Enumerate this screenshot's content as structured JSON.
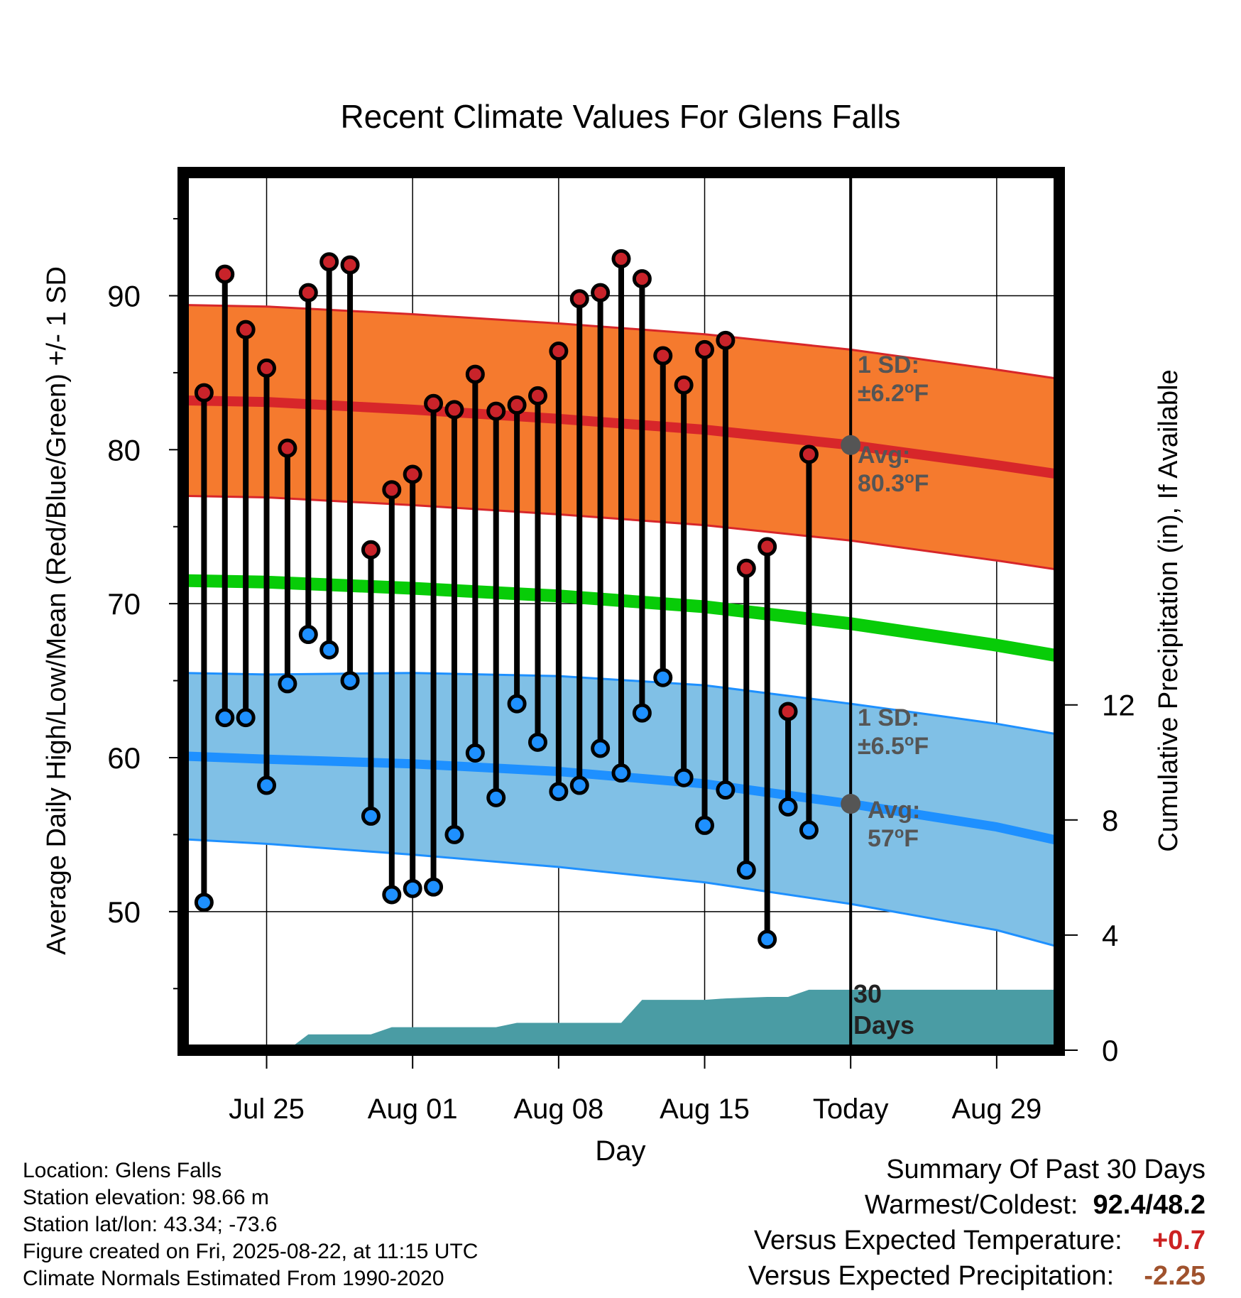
{
  "chart_data": {
    "type": "line",
    "title": "Recent Climate Values For Glens Falls",
    "xlabel": "Day",
    "ylabel": "Average Daily High/Low/Mean (Red/Blue/Green) +/- 1 SD",
    "y2label": "Cumulative Precipitation (in), If Available",
    "x_tick_labels": [
      "Jul 25",
      "Aug 01",
      "Aug 08",
      "Aug 15",
      "Today",
      "Aug 29"
    ],
    "x_tick_dates": [
      "2025-07-25",
      "2025-08-01",
      "2025-08-08",
      "2025-08-15",
      "2025-08-22",
      "2025-08-29"
    ],
    "xlim": [
      "2025-07-21",
      "2025-09-01"
    ],
    "ylim": [
      41,
      98
    ],
    "y_ticks": [
      50,
      60,
      70,
      80,
      90
    ],
    "y2lim": [
      0,
      30.5
    ],
    "y2_ticks": [
      0,
      4,
      8,
      12
    ],
    "grid": true,
    "today": "2025-08-22",
    "daily_dates": [
      "2025-07-22",
      "2025-07-23",
      "2025-07-24",
      "2025-07-25",
      "2025-07-26",
      "2025-07-27",
      "2025-07-28",
      "2025-07-29",
      "2025-07-30",
      "2025-07-31",
      "2025-08-01",
      "2025-08-02",
      "2025-08-03",
      "2025-08-04",
      "2025-08-05",
      "2025-08-06",
      "2025-08-07",
      "2025-08-08",
      "2025-08-09",
      "2025-08-10",
      "2025-08-11",
      "2025-08-12",
      "2025-08-13",
      "2025-08-14",
      "2025-08-15",
      "2025-08-16",
      "2025-08-17",
      "2025-08-18",
      "2025-08-19",
      "2025-08-20",
      "2025-08-21"
    ],
    "series": [
      {
        "name": "High",
        "values": [
          83.7,
          91.4,
          87.8,
          85.3,
          80.1,
          90.2,
          92.2,
          92.0,
          73.5,
          77.4,
          78.4,
          83.0,
          82.6,
          84.9,
          82.5,
          82.9,
          83.5,
          86.4,
          89.8,
          90.2,
          92.4,
          91.1,
          86.1,
          84.2,
          86.5,
          87.1,
          72.3,
          73.7,
          63.0,
          79.7,
          null
        ]
      },
      {
        "name": "Low",
        "values": [
          50.6,
          62.6,
          62.6,
          58.2,
          64.8,
          68.0,
          67.0,
          65.0,
          56.2,
          51.1,
          51.5,
          51.6,
          55.0,
          60.3,
          57.4,
          63.5,
          61.0,
          57.8,
          58.2,
          60.6,
          59.0,
          62.9,
          65.2,
          58.7,
          55.6,
          57.9,
          52.7,
          48.2,
          56.8,
          55.3,
          null
        ]
      }
    ],
    "normal_dates": [
      "2025-07-21",
      "2025-07-25",
      "2025-08-01",
      "2025-08-08",
      "2025-08-15",
      "2025-08-22",
      "2025-08-29",
      "2025-09-01"
    ],
    "normal_high": [
      83.2,
      83.1,
      82.6,
      82.0,
      81.3,
      80.3,
      79.0,
      78.4
    ],
    "normal_high_sd": [
      6.2,
      6.2,
      6.2,
      6.2,
      6.2,
      6.2,
      6.2,
      6.2
    ],
    "normal_mean": [
      71.5,
      71.4,
      71.0,
      70.5,
      69.8,
      68.7,
      67.3,
      66.6
    ],
    "normal_low": [
      60.1,
      59.9,
      59.6,
      59.1,
      58.3,
      57.0,
      55.5,
      54.6
    ],
    "normal_low_sd": [
      5.4,
      5.5,
      5.9,
      6.2,
      6.4,
      6.5,
      6.7,
      6.9
    ],
    "precip_dates": [
      "2025-07-21",
      "2025-07-23",
      "2025-07-24",
      "2025-07-25",
      "2025-07-26",
      "2025-07-27",
      "2025-07-30",
      "2025-07-31",
      "2025-08-05",
      "2025-08-06",
      "2025-08-11",
      "2025-08-12",
      "2025-08-15",
      "2025-08-16",
      "2025-08-18",
      "2025-08-19",
      "2025-08-20",
      "2025-08-21",
      "2025-09-01"
    ],
    "precip_cumulative": [
      0,
      0,
      0,
      0,
      0,
      0.55,
      0.55,
      0.8,
      0.8,
      0.95,
      0.95,
      1.75,
      1.75,
      1.8,
      1.85,
      1.85,
      2.1,
      2.1,
      2.1
    ],
    "annotations": {
      "high_sd_label_1": "1 SD:",
      "high_sd_label_2": "±6.2",
      "high_avg_label_1": "Avg:",
      "high_avg_label_2": "80.3",
      "low_sd_label_1": "1 SD:",
      "low_sd_label_2": "±6.5",
      "low_avg_label_1": "Avg:",
      "low_avg_label_2": "57",
      "degree_mark": "o",
      "unit": "F",
      "days_label_1": "30",
      "days_label_2": "Days"
    },
    "colors": {
      "high_band": "#f57a2e",
      "high_band_edge": "#d7262a",
      "high_line": "#d7262a",
      "high_dot": "#c9232a",
      "mean_line": "#08cc08",
      "low_band": "#80c0e6",
      "low_band_edge": "#1e90ff",
      "low_line": "#1e90ff",
      "low_dot": "#1e90ff",
      "precip": "#4a9ca4",
      "annotation": "#555555"
    }
  },
  "footer": {
    "location": "Location: Glens Falls",
    "elevation": "Station elevation: 98.66 m",
    "latlon": "Station lat/lon: 43.34; -73.6",
    "created": "Figure created on Fri, 2025-08-22, at 11:15 UTC",
    "normals": "Climate Normals Estimated From 1990-2020"
  },
  "summary": {
    "title": "Summary Of Past 30 Days",
    "warmest_label": "Warmest/Coldest:",
    "warmest_value": "92.4/48.2",
    "temp_label": "Versus Expected Temperature:",
    "temp_value": "+0.7",
    "temp_color": "#cc2222",
    "precip_label": "Versus Expected Precipitation:",
    "precip_value": "-2.25",
    "precip_color": "#a0522d"
  }
}
